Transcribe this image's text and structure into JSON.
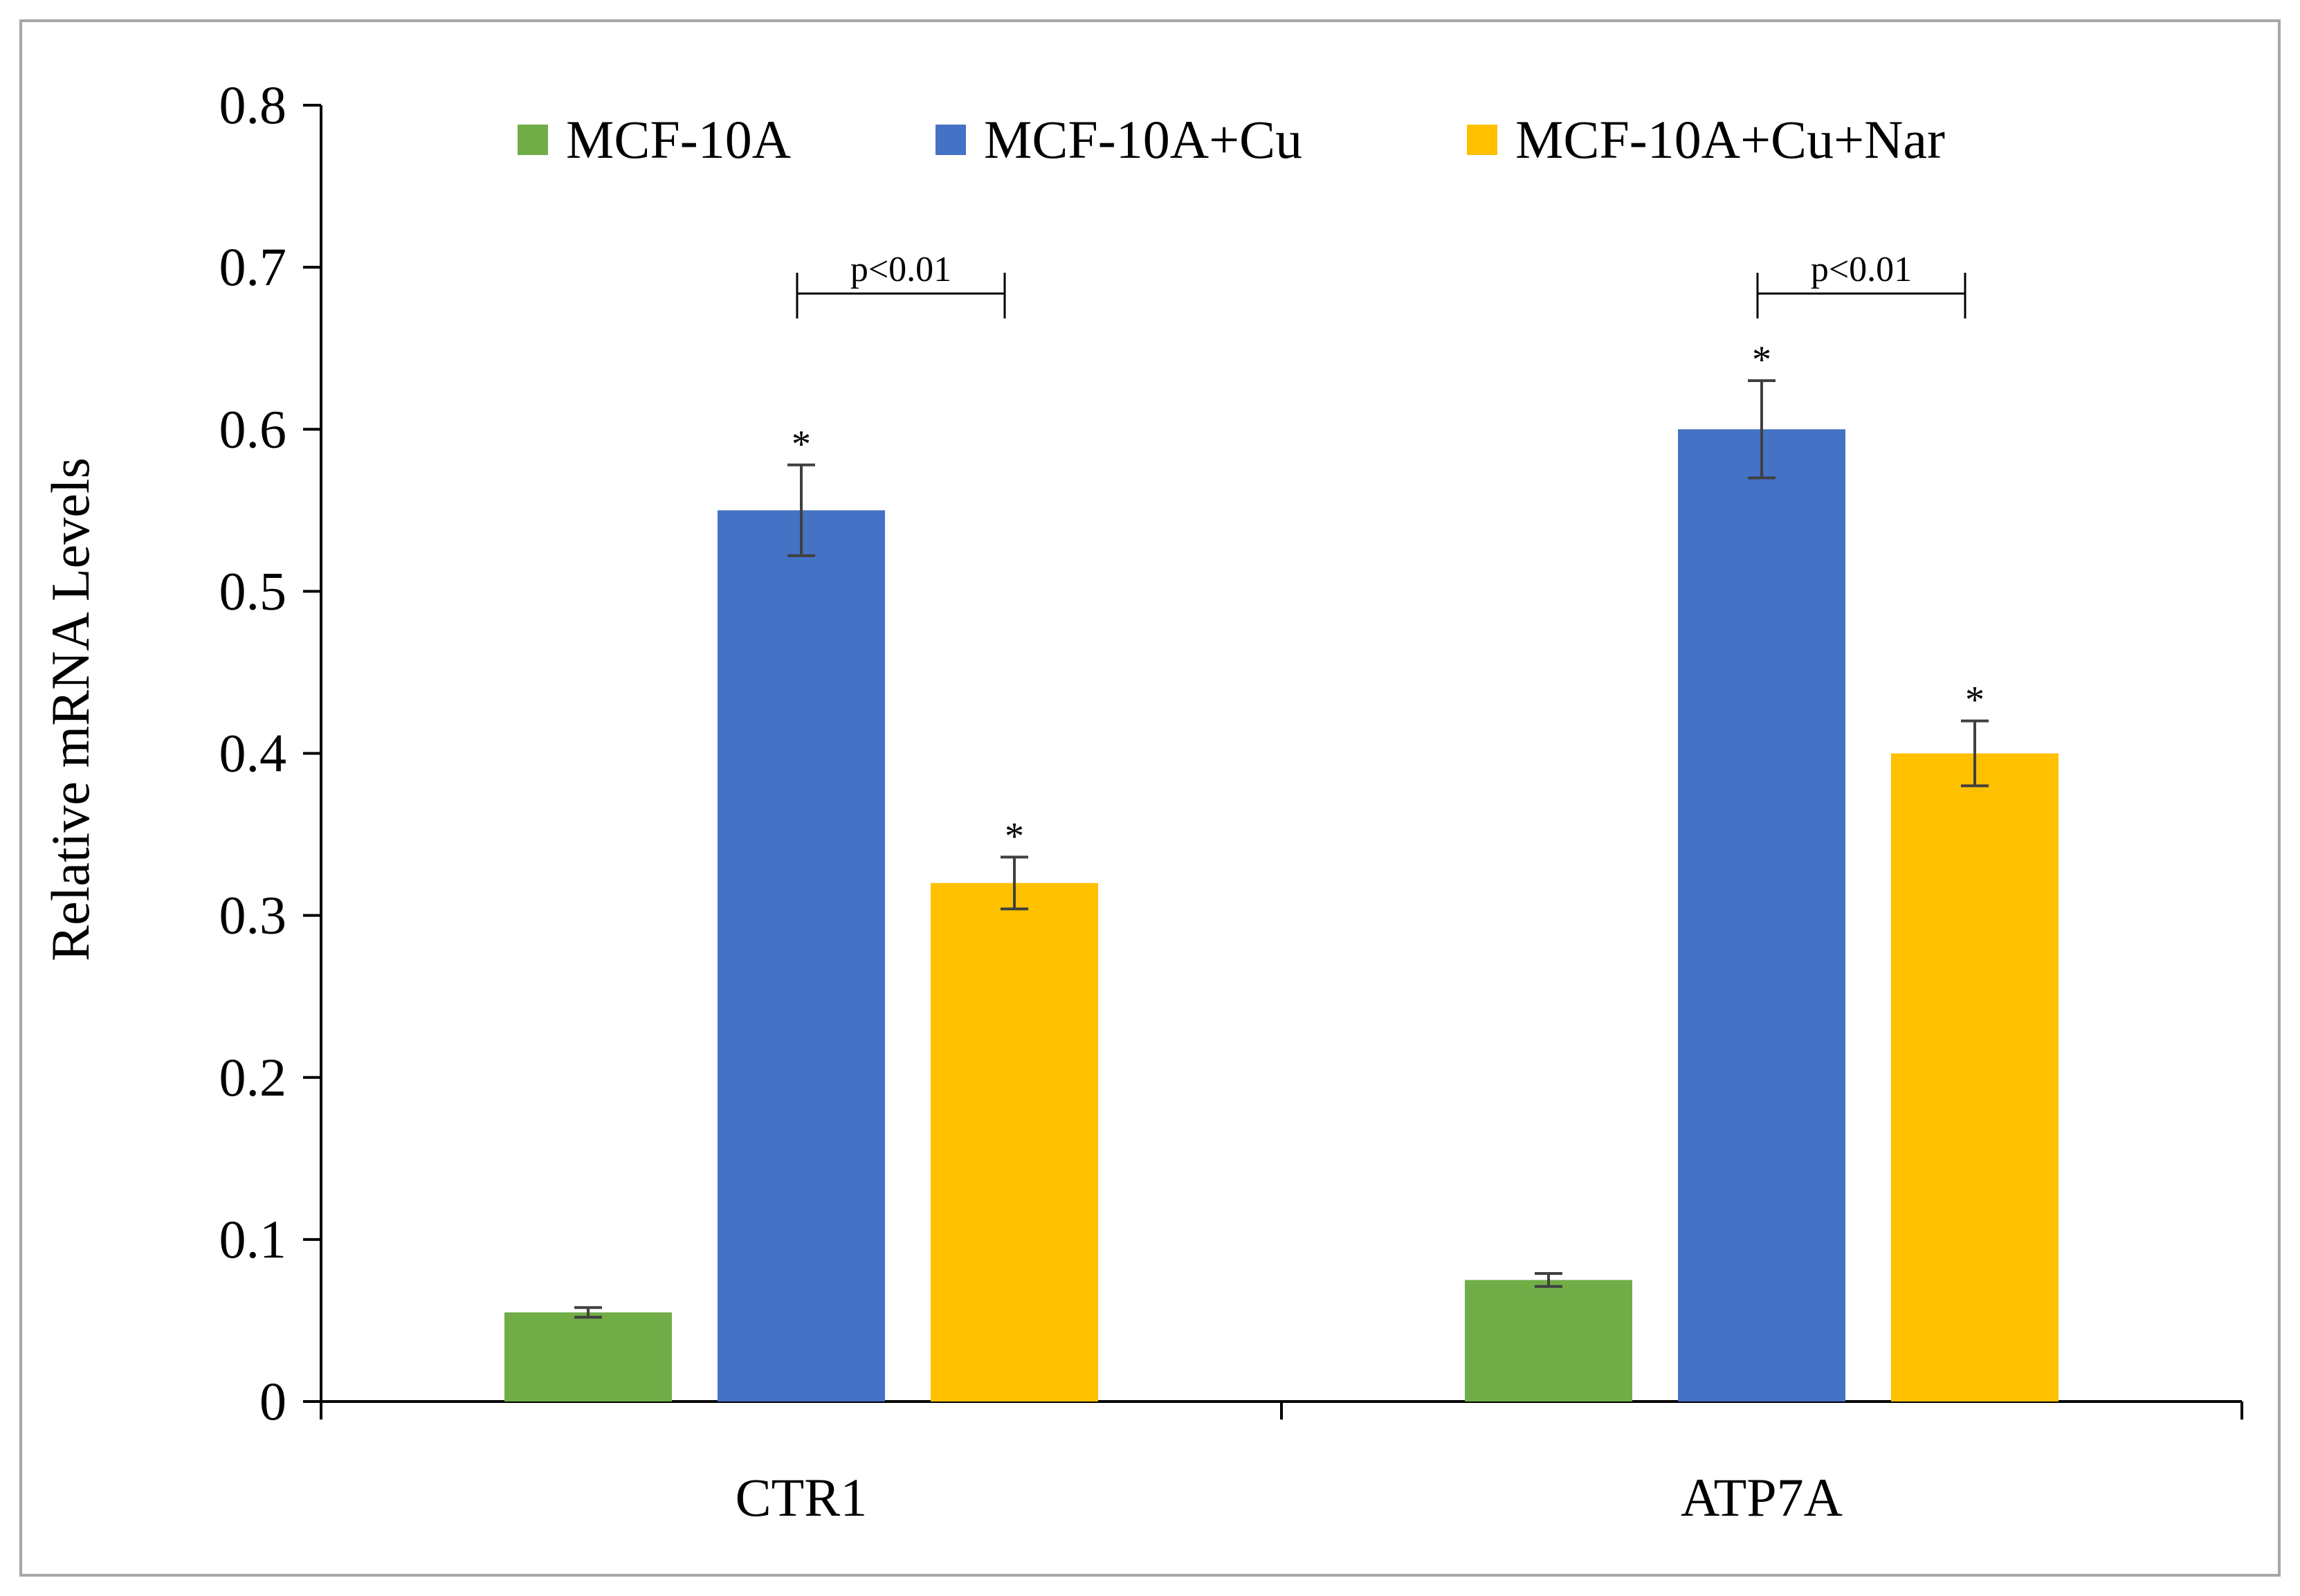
{
  "chart_data": {
    "type": "bar",
    "title": "",
    "xlabel": "",
    "ylabel": "Relative mRNA Levels",
    "ylim": [
      0,
      0.8
    ],
    "yticks": [
      0,
      0.1,
      0.2,
      0.3,
      0.4,
      0.5,
      0.6,
      0.7,
      0.8
    ],
    "ytick_labels": [
      "0",
      "0.1",
      "0.2",
      "0.3",
      "0.4",
      "0.5",
      "0.6",
      "0.7",
      "0.8"
    ],
    "categories": [
      "CTR1",
      "ATP7A"
    ],
    "series": [
      {
        "name": "MCF-10A",
        "color": "#70AD47",
        "values": [
          0.055,
          0.075
        ],
        "errors": [
          0.003,
          0.004
        ],
        "markers": [
          "",
          ""
        ]
      },
      {
        "name": "MCF-10A+Cu",
        "color": "#4472C4",
        "values": [
          0.55,
          0.6
        ],
        "errors": [
          0.028,
          0.03
        ],
        "markers": [
          "*",
          "*"
        ]
      },
      {
        "name": "MCF-10A+Cu+Nar",
        "color": "#FFC000",
        "values": [
          0.32,
          0.4
        ],
        "errors": [
          0.016,
          0.02
        ],
        "markers": [
          "*",
          "*"
        ]
      }
    ],
    "annotations": [
      {
        "category": "CTR1",
        "from_series": 1,
        "to_series": 2,
        "text": "p<0.01",
        "y": 0.7
      },
      {
        "category": "ATP7A",
        "from_series": 1,
        "to_series": 2,
        "text": "p<0.01",
        "y": 0.7
      }
    ],
    "legend": "top-center",
    "grid": false
  }
}
